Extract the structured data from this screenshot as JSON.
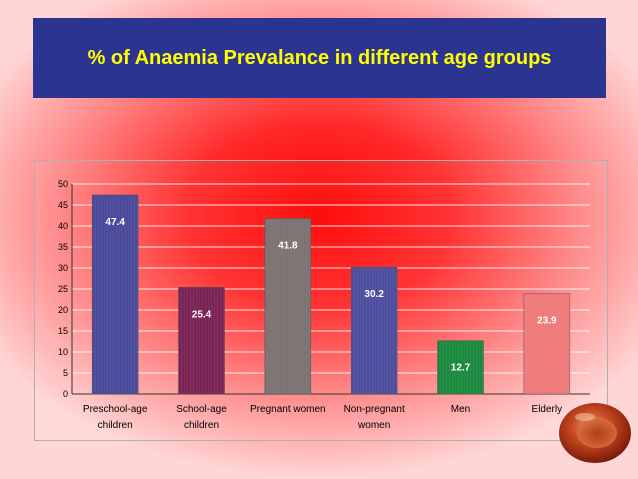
{
  "title": "% of Anaemia Prevalance in different age groups",
  "colors": {
    "title_bg": "#2b3591",
    "title_text": "#ffff00",
    "background": "#ff0000",
    "gridline": "#ffffff"
  },
  "chart_data": {
    "type": "bar",
    "title": "",
    "xlabel": "",
    "ylabel": "",
    "ylim": [
      0,
      50
    ],
    "yticks": [
      0,
      5,
      10,
      15,
      20,
      25,
      30,
      35,
      40,
      45,
      50
    ],
    "grid": true,
    "categories": [
      [
        "Preschool-age",
        "children"
      ],
      [
        "School-age",
        "children"
      ],
      [
        "Pregnant women"
      ],
      [
        "Non-pregnant",
        "women"
      ],
      [
        "Men"
      ],
      [
        "Elderly"
      ]
    ],
    "values": [
      47.4,
      25.4,
      41.8,
      30.2,
      12.7,
      23.9
    ],
    "bar_colors": [
      "#4a4a9a",
      "#7a2355",
      "#7c7272",
      "#4d4f9e",
      "#1c8a3e",
      "#f07a7a"
    ]
  },
  "decoration": {
    "icon": "blood-cell-icon"
  }
}
